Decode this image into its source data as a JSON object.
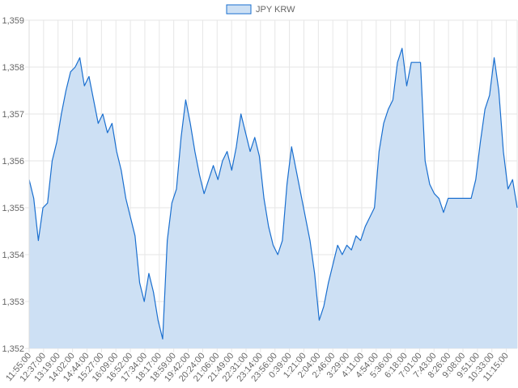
{
  "chart_data": {
    "type": "area",
    "title": "",
    "xlabel": "",
    "ylabel": "",
    "legend": {
      "position": "top-center",
      "entries": [
        "JPY KRW"
      ]
    },
    "grid": true,
    "ylim": [
      1352,
      1359
    ],
    "y_ticks": [
      1352,
      1353,
      1354,
      1355,
      1356,
      1357,
      1358,
      1359
    ],
    "y_tick_labels": [
      "1,352",
      "1,353",
      "1,354",
      "1,355",
      "1,356",
      "1,357",
      "1,358",
      "1,359"
    ],
    "x_tick_labels": [
      "11:55:00",
      "12:37:00",
      "13:19:00",
      "14:02:00",
      "14:44:00",
      "15:27:00",
      "16:09:00",
      "16:52:00",
      "17:34:00",
      "18:17:00",
      "18:59:00",
      "19:42:00",
      "20:24:00",
      "21:06:00",
      "21:49:00",
      "22:31:00",
      "23:14:00",
      "23:56:00",
      "0:39:00",
      "1:21:00",
      "2:04:00",
      "2:46:00",
      "3:29:00",
      "4:11:00",
      "4:54:00",
      "5:36:00",
      "6:18:00",
      "7:01:00",
      "7:43:00",
      "8:26:00",
      "9:08:00",
      "9:51:00",
      "10:33:00",
      "11:15:00"
    ],
    "series": [
      {
        "name": "JPY KRW",
        "color": "#1a6fcf",
        "fill": "#cde0f4",
        "values": [
          1355.6,
          1355.2,
          1354.3,
          1355.0,
          1355.1,
          1356.0,
          1356.4,
          1357.0,
          1357.5,
          1357.9,
          1358.0,
          1358.2,
          1357.6,
          1357.8,
          1357.3,
          1356.8,
          1357.0,
          1356.6,
          1356.8,
          1356.2,
          1355.8,
          1355.2,
          1354.8,
          1354.4,
          1353.4,
          1353.0,
          1353.6,
          1353.2,
          1352.6,
          1352.2,
          1354.3,
          1355.1,
          1355.4,
          1356.5,
          1357.3,
          1356.8,
          1356.2,
          1355.7,
          1355.3,
          1355.6,
          1355.9,
          1355.6,
          1356.0,
          1356.2,
          1355.8,
          1356.3,
          1357.0,
          1356.6,
          1356.2,
          1356.5,
          1356.1,
          1355.2,
          1354.6,
          1354.2,
          1354.0,
          1354.3,
          1355.5,
          1356.3,
          1355.8,
          1355.3,
          1354.8,
          1354.3,
          1353.6,
          1352.6,
          1352.9,
          1353.4,
          1353.8,
          1354.2,
          1354.0,
          1354.2,
          1354.1,
          1354.4,
          1354.3,
          1354.6,
          1354.8,
          1355.0,
          1356.2,
          1356.8,
          1357.1,
          1357.3,
          1358.1,
          1358.4,
          1357.6,
          1358.1,
          1358.1,
          1358.1,
          1356.0,
          1355.5,
          1355.3,
          1355.2,
          1354.9,
          1355.2,
          1355.2,
          1355.2,
          1355.2,
          1355.2,
          1355.2,
          1355.6,
          1356.4,
          1357.1,
          1357.4,
          1358.2,
          1357.5,
          1356.2,
          1355.4,
          1355.6,
          1355.0
        ]
      }
    ]
  }
}
